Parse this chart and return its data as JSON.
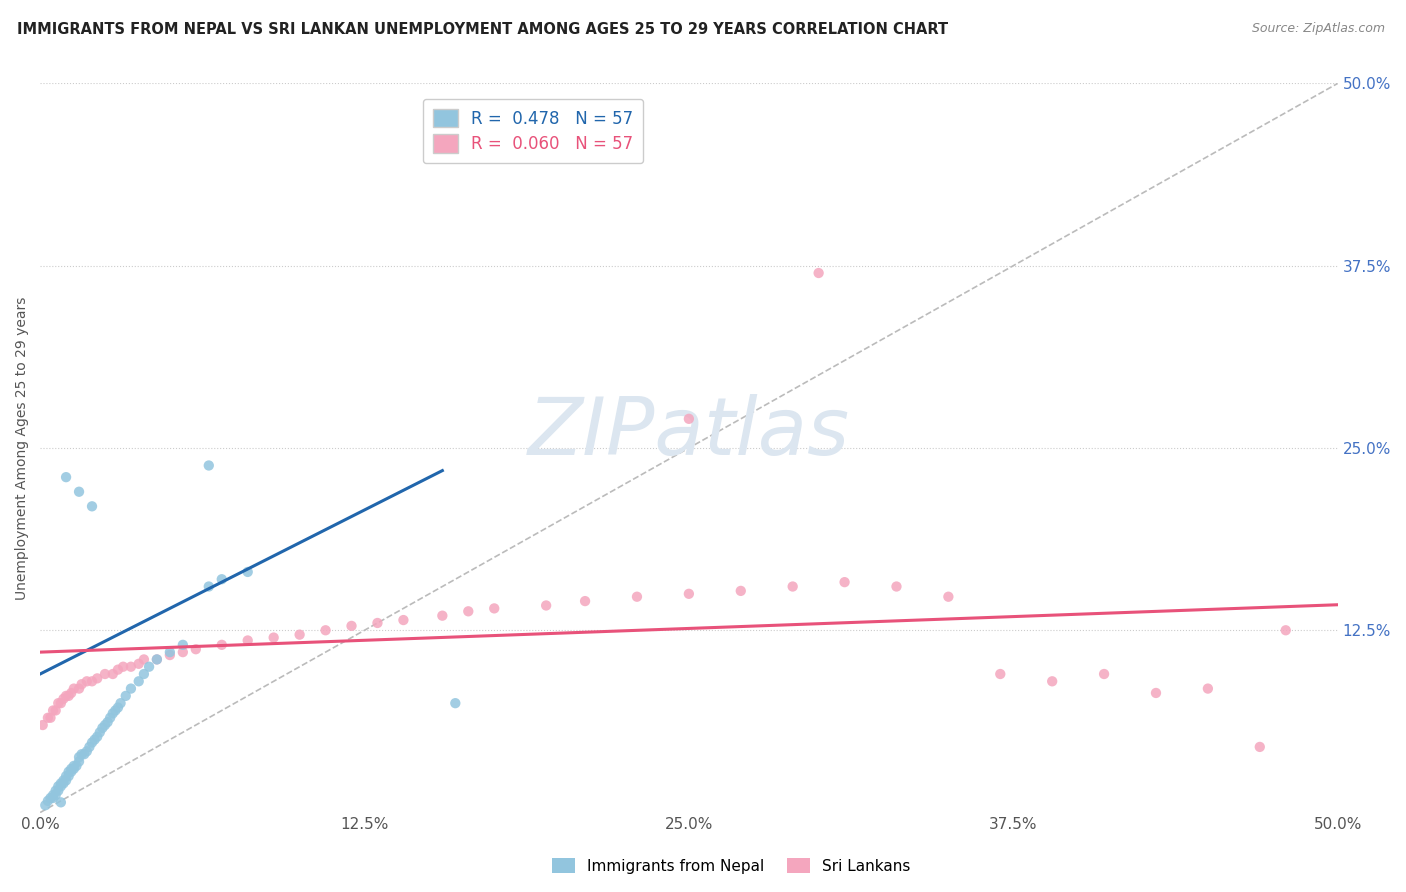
{
  "title": "IMMIGRANTS FROM NEPAL VS SRI LANKAN UNEMPLOYMENT AMONG AGES 25 TO 29 YEARS CORRELATION CHART",
  "source": "Source: ZipAtlas.com",
  "ylabel": "Unemployment Among Ages 25 to 29 years",
  "xlim": [
    0.0,
    0.5
  ],
  "ylim": [
    0.0,
    0.5
  ],
  "xtick_labels": [
    "0.0%",
    "12.5%",
    "25.0%",
    "37.5%",
    "50.0%"
  ],
  "xtick_vals": [
    0.0,
    0.125,
    0.25,
    0.375,
    0.5
  ],
  "right_ytick_labels": [
    "50.0%",
    "37.5%",
    "25.0%",
    "12.5%"
  ],
  "right_ytick_vals": [
    0.5,
    0.375,
    0.25,
    0.125
  ],
  "nepal_R": "0.478",
  "nepal_N": "57",
  "srilanka_R": "0.060",
  "srilanka_N": "57",
  "nepal_color": "#92c5de",
  "srilanka_color": "#f4a6be",
  "nepal_line_color": "#2166ac",
  "srilanka_line_color": "#e8527a",
  "diagonal_color": "#bbbbbb",
  "watermark_text": "ZIPatlas",
  "watermark_color": "#dce6f0",
  "nepal_legend_label": "Immigrants from Nepal",
  "srilanka_legend_label": "Sri Lankans",
  "nepal_scatter_x": [
    0.002,
    0.003,
    0.004,
    0.005,
    0.005,
    0.006,
    0.006,
    0.007,
    0.007,
    0.008,
    0.008,
    0.009,
    0.009,
    0.01,
    0.01,
    0.011,
    0.011,
    0.012,
    0.012,
    0.013,
    0.013,
    0.014,
    0.015,
    0.015,
    0.016,
    0.017,
    0.018,
    0.019,
    0.02,
    0.021,
    0.022,
    0.023,
    0.024,
    0.025,
    0.026,
    0.027,
    0.028,
    0.029,
    0.03,
    0.031,
    0.033,
    0.035,
    0.038,
    0.04,
    0.042,
    0.045,
    0.05,
    0.055,
    0.065,
    0.07,
    0.08,
    0.02,
    0.015,
    0.01,
    0.008,
    0.16,
    0.065
  ],
  "nepal_scatter_y": [
    0.005,
    0.008,
    0.01,
    0.01,
    0.012,
    0.012,
    0.015,
    0.015,
    0.018,
    0.018,
    0.02,
    0.02,
    0.022,
    0.022,
    0.025,
    0.025,
    0.028,
    0.028,
    0.03,
    0.03,
    0.032,
    0.032,
    0.035,
    0.038,
    0.04,
    0.04,
    0.042,
    0.045,
    0.048,
    0.05,
    0.052,
    0.055,
    0.058,
    0.06,
    0.062,
    0.065,
    0.068,
    0.07,
    0.072,
    0.075,
    0.08,
    0.085,
    0.09,
    0.095,
    0.1,
    0.105,
    0.11,
    0.115,
    0.155,
    0.16,
    0.165,
    0.21,
    0.22,
    0.23,
    0.007,
    0.075,
    0.238
  ],
  "srilanka_scatter_x": [
    0.001,
    0.003,
    0.004,
    0.005,
    0.006,
    0.007,
    0.008,
    0.009,
    0.01,
    0.011,
    0.012,
    0.013,
    0.015,
    0.016,
    0.018,
    0.02,
    0.022,
    0.025,
    0.028,
    0.03,
    0.032,
    0.035,
    0.038,
    0.04,
    0.045,
    0.05,
    0.055,
    0.06,
    0.07,
    0.08,
    0.09,
    0.1,
    0.11,
    0.12,
    0.13,
    0.14,
    0.155,
    0.165,
    0.175,
    0.195,
    0.21,
    0.23,
    0.25,
    0.27,
    0.29,
    0.31,
    0.33,
    0.35,
    0.37,
    0.39,
    0.41,
    0.43,
    0.45,
    0.47,
    0.3,
    0.25,
    0.48
  ],
  "srilanka_scatter_y": [
    0.06,
    0.065,
    0.065,
    0.07,
    0.07,
    0.075,
    0.075,
    0.078,
    0.08,
    0.08,
    0.082,
    0.085,
    0.085,
    0.088,
    0.09,
    0.09,
    0.092,
    0.095,
    0.095,
    0.098,
    0.1,
    0.1,
    0.102,
    0.105,
    0.105,
    0.108,
    0.11,
    0.112,
    0.115,
    0.118,
    0.12,
    0.122,
    0.125,
    0.128,
    0.13,
    0.132,
    0.135,
    0.138,
    0.14,
    0.142,
    0.145,
    0.148,
    0.15,
    0.152,
    0.155,
    0.158,
    0.155,
    0.148,
    0.095,
    0.09,
    0.095,
    0.082,
    0.085,
    0.045,
    0.37,
    0.27,
    0.125
  ],
  "nepal_line_x": [
    0.0,
    0.155
  ],
  "nepal_line_y_start": 0.095,
  "nepal_line_slope": 0.9,
  "srilanka_line_x": [
    0.0,
    0.5
  ],
  "srilanka_line_y_start": 0.11,
  "srilanka_line_slope": 0.065
}
